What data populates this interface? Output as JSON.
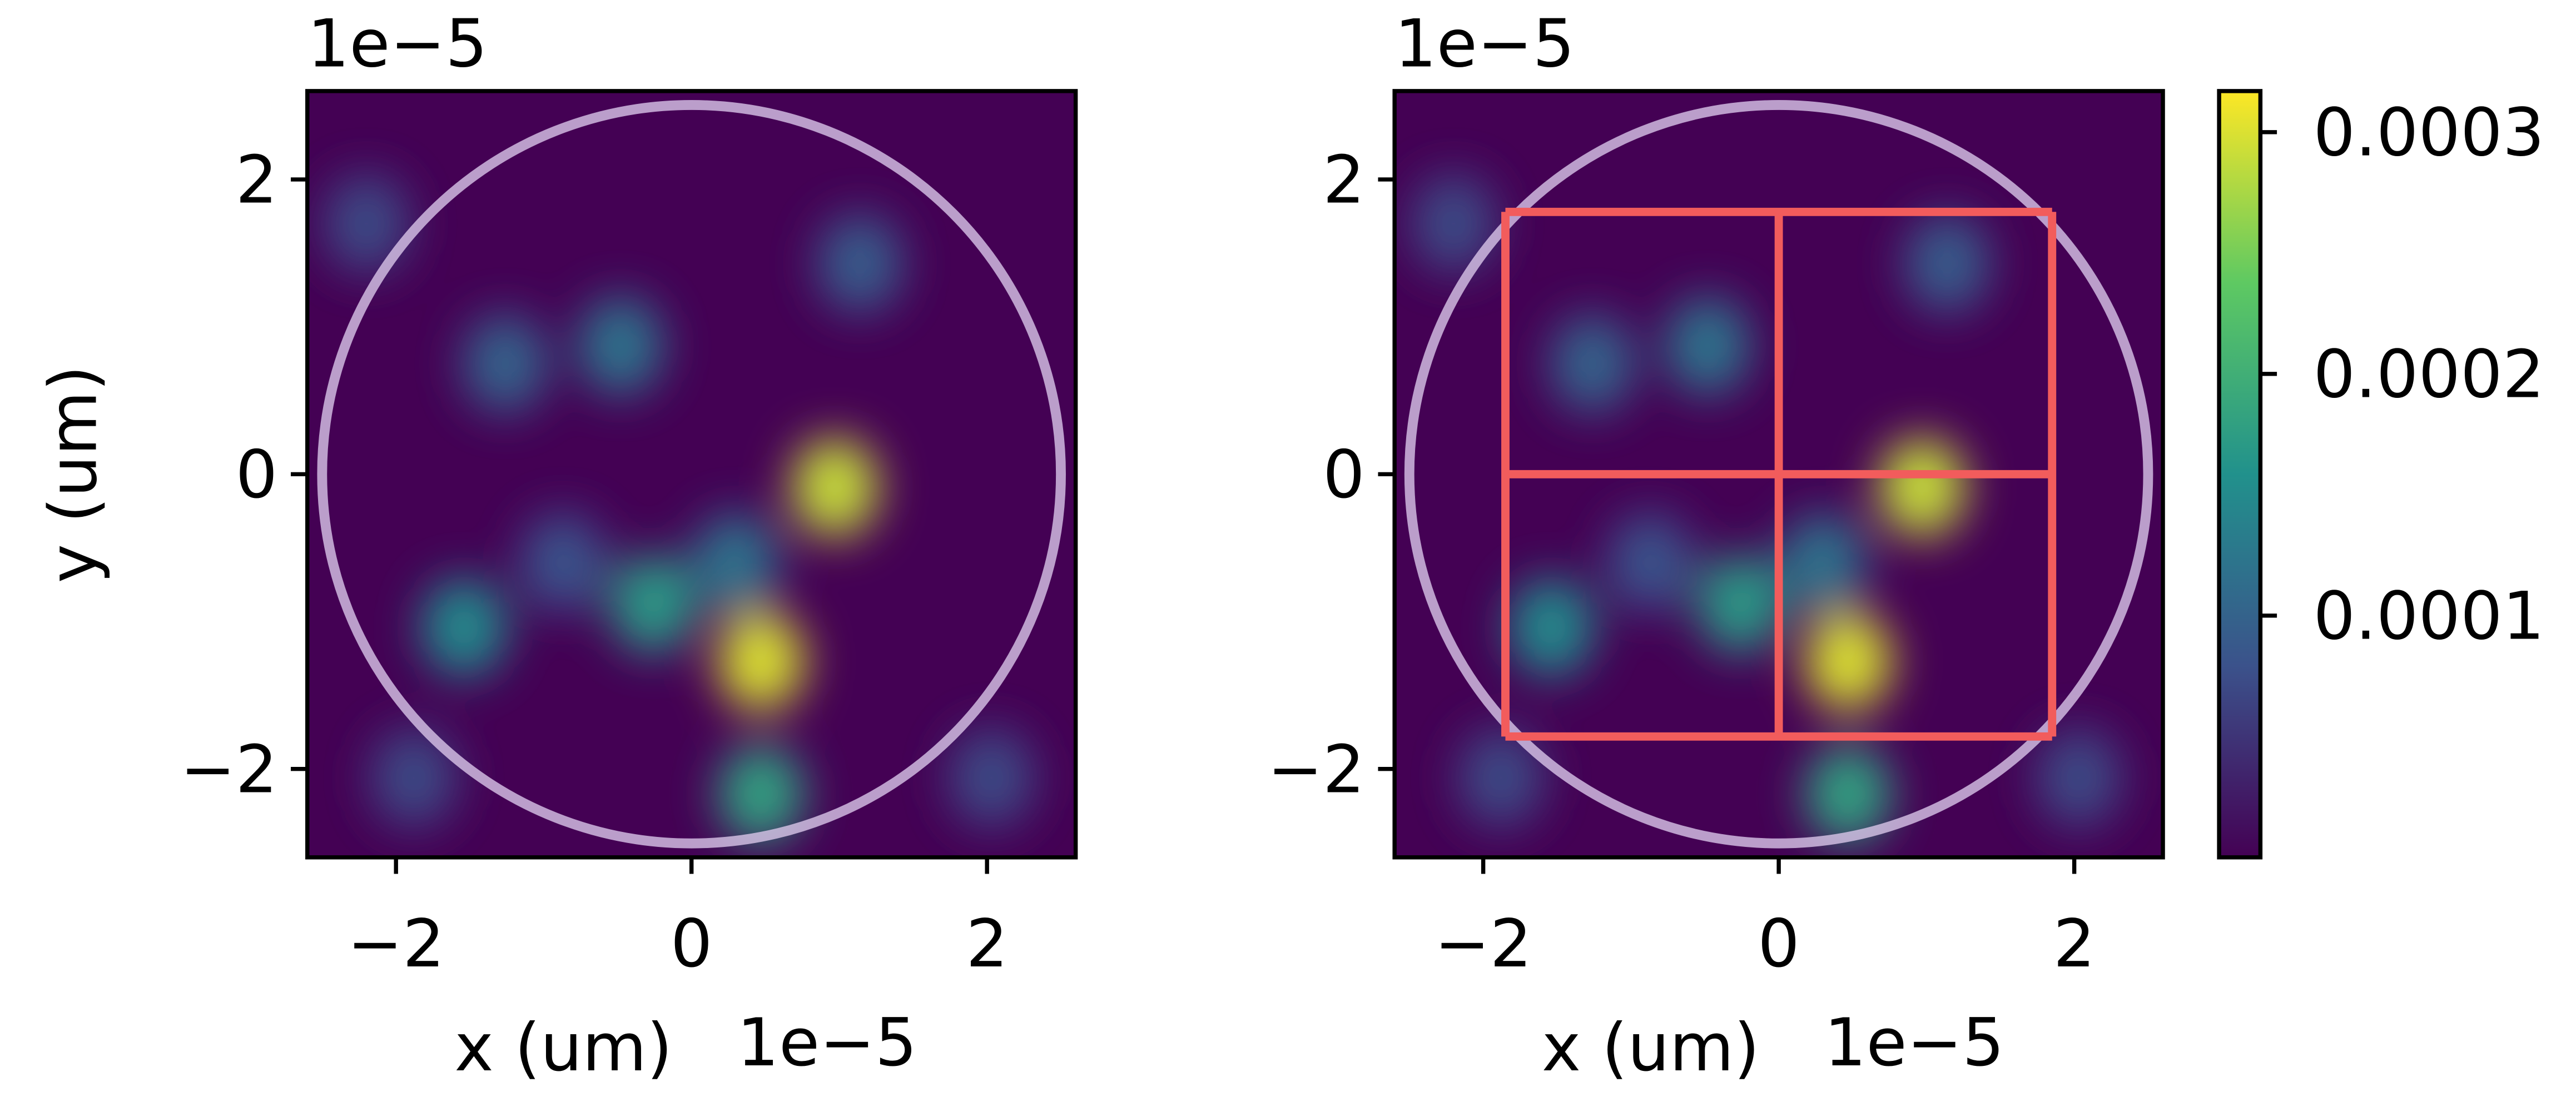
{
  "chart_data": [
    {
      "type": "heatmap",
      "colormap": "viridis",
      "xlabel": "x (um)",
      "ylabel": "y (um)",
      "x_offset_label": "1e−5",
      "y_offset_label": "1e−5",
      "xlim": [
        -2.6,
        2.6
      ],
      "ylim": [
        -2.6,
        2.6
      ],
      "xticks": [
        {
          "value": -2,
          "label": "−2"
        },
        0,
        2
      ],
      "yticks": [
        {
          "value": -2,
          "label": "−2"
        },
        0,
        2
      ],
      "peaks": {
        "x": [
          0.97,
          0.47,
          0.47,
          -0.26,
          -1.54,
          -0.48,
          -1.26,
          1.14,
          0.3,
          -0.87,
          -2.2,
          2.03,
          -1.88
        ],
        "y": [
          -0.09,
          -1.27,
          -2.17,
          -0.88,
          -1.04,
          0.87,
          0.75,
          1.43,
          -0.6,
          -0.6,
          1.7,
          -2.06,
          -2.06
        ],
        "values": [
          0.00029,
          0.0003,
          0.00018,
          0.00017,
          0.00015,
          0.00012,
          0.0001,
          9e-05,
          0.00012,
          8e-05,
          7e-05,
          7e-05,
          7e-05
        ]
      },
      "aperture_radius": 2.5,
      "aperture_color": "#d9c6e8"
    },
    {
      "type": "heatmap",
      "colormap": "viridis",
      "xlabel": "x (um)",
      "x_offset_label": "1e−5",
      "y_offset_label": "1e−5",
      "xlim": [
        -2.6,
        2.6
      ],
      "ylim": [
        -2.6,
        2.6
      ],
      "xticks": [
        {
          "value": -2,
          "label": "−2"
        },
        0,
        2
      ],
      "yticks": [
        {
          "value": -2,
          "label": "−2"
        },
        0,
        2
      ],
      "peaks": {
        "x": [
          0.97,
          0.47,
          0.47,
          -0.26,
          -1.54,
          -0.48,
          -1.26,
          1.14,
          0.3,
          -0.87,
          -2.2,
          2.03,
          -1.88
        ],
        "y": [
          -0.09,
          -1.27,
          -2.17,
          -0.88,
          -1.04,
          0.87,
          0.75,
          1.43,
          -0.6,
          -0.6,
          1.7,
          -2.06,
          -2.06
        ],
        "values": [
          0.00029,
          0.0003,
          0.00018,
          0.00017,
          0.00015,
          0.00012,
          0.0001,
          9e-05,
          0.00012,
          8e-05,
          7e-05,
          7e-05,
          7e-05
        ]
      },
      "aperture_radius": 2.5,
      "aperture_color": "#d9c6e8",
      "overlay": {
        "x_edges": [
          -1.85,
          0,
          1.85
        ],
        "y_edges": [
          -1.78,
          0,
          1.78
        ],
        "color": "#f25c5c"
      },
      "colorbar": {
        "lim": [
          0,
          0.000317
        ],
        "ticks": [
          0.0001,
          0.0002,
          0.0003
        ]
      }
    }
  ]
}
